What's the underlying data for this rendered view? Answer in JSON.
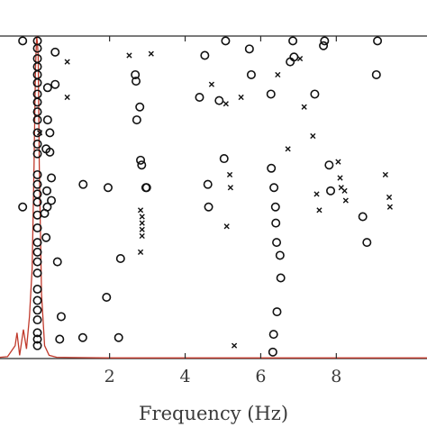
{
  "chart_data": {
    "type": "scatter",
    "title": "",
    "xlabel": "Frequency (Hz)",
    "ylabel": "",
    "xlim": [
      -0.9,
      10.4
    ],
    "ylim": [
      0,
      1
    ],
    "xticks": [
      2,
      4,
      6,
      8
    ],
    "tick_labels": [
      "2",
      "4",
      "6",
      "8"
    ],
    "grid": false,
    "legend": "none",
    "colors": {
      "markers": "#111111",
      "spectrum": "#c0392b",
      "axes": "#2b2b2b"
    },
    "series": [
      {
        "marker": "circle",
        "points": [
          [
            0.09,
            0.985
          ],
          [
            0.09,
            0.962
          ],
          [
            0.09,
            0.93
          ],
          [
            0.09,
            0.905
          ],
          [
            0.09,
            0.88
          ],
          [
            0.09,
            0.855
          ],
          [
            0.09,
            0.82
          ],
          [
            0.09,
            0.795
          ],
          [
            0.09,
            0.765
          ],
          [
            0.09,
            0.74
          ],
          [
            0.09,
            0.7
          ],
          [
            0.09,
            0.665
          ],
          [
            0.09,
            0.635
          ],
          [
            0.09,
            0.57
          ],
          [
            0.09,
            0.54
          ],
          [
            0.09,
            0.51
          ],
          [
            0.09,
            0.485
          ],
          [
            0.09,
            0.445
          ],
          [
            0.09,
            0.405
          ],
          [
            0.09,
            0.36
          ],
          [
            0.09,
            0.33
          ],
          [
            0.09,
            0.3
          ],
          [
            0.09,
            0.265
          ],
          [
            0.09,
            0.215
          ],
          [
            0.09,
            0.18
          ],
          [
            0.09,
            0.15
          ],
          [
            0.09,
            0.12
          ],
          [
            0.09,
            0.08
          ],
          [
            0.09,
            0.06
          ],
          [
            0.09,
            0.04
          ],
          [
            -0.3,
            0.985
          ],
          [
            -0.3,
            0.47
          ],
          [
            0.42,
            0.7
          ],
          [
            0.42,
            0.64
          ],
          [
            0.46,
            0.56
          ],
          [
            0.46,
            0.49
          ],
          [
            0.56,
            0.95
          ],
          [
            0.56,
            0.85
          ],
          [
            0.36,
            0.84
          ],
          [
            0.36,
            0.74
          ],
          [
            0.32,
            0.65
          ],
          [
            0.34,
            0.52
          ],
          [
            0.28,
            0.45
          ],
          [
            0.32,
            0.375
          ],
          [
            0.35,
            0.47
          ],
          [
            0.62,
            0.3
          ],
          [
            0.68,
            0.06
          ],
          [
            0.72,
            0.13
          ],
          [
            1.29,
            0.065
          ],
          [
            1.3,
            0.54
          ],
          [
            1.92,
            0.19
          ],
          [
            1.96,
            0.53
          ],
          [
            2.24,
            0.065
          ],
          [
            2.29,
            0.31
          ],
          [
            2.68,
            0.88
          ],
          [
            2.7,
            0.86
          ],
          [
            2.72,
            0.74
          ],
          [
            2.8,
            0.78
          ],
          [
            2.82,
            0.615
          ],
          [
            2.85,
            0.6
          ],
          [
            2.96,
            0.53
          ],
          [
            2.98,
            0.53
          ],
          [
            4.38,
            0.81
          ],
          [
            4.52,
            0.94
          ],
          [
            4.6,
            0.54
          ],
          [
            4.62,
            0.47
          ],
          [
            4.9,
            0.8
          ],
          [
            5.03,
            0.62
          ],
          [
            5.07,
            0.985
          ],
          [
            5.7,
            0.96
          ],
          [
            5.75,
            0.88
          ],
          [
            6.27,
            0.82
          ],
          [
            6.28,
            0.59
          ],
          [
            6.35,
            0.53
          ],
          [
            6.39,
            0.47
          ],
          [
            6.4,
            0.42
          ],
          [
            6.42,
            0.36
          ],
          [
            6.51,
            0.32
          ],
          [
            6.53,
            0.25
          ],
          [
            6.43,
            0.145
          ],
          [
            6.34,
            0.075
          ],
          [
            6.32,
            0.02
          ],
          [
            6.78,
            0.92
          ],
          [
            6.85,
            0.985
          ],
          [
            6.88,
            0.935
          ],
          [
            7.43,
            0.82
          ],
          [
            7.66,
            0.97
          ],
          [
            7.69,
            0.985
          ],
          [
            7.81,
            0.6
          ],
          [
            7.85,
            0.52
          ],
          [
            8.7,
            0.44
          ],
          [
            8.81,
            0.36
          ],
          [
            9.06,
            0.88
          ],
          [
            9.09,
            0.985
          ]
        ]
      },
      {
        "marker": "x",
        "points": [
          [
            0.15,
            0.7
          ],
          [
            0.88,
            0.92
          ],
          [
            0.88,
            0.81
          ],
          [
            2.52,
            0.94
          ],
          [
            3.1,
            0.945
          ],
          [
            2.82,
            0.46
          ],
          [
            2.86,
            0.44
          ],
          [
            2.86,
            0.42
          ],
          [
            2.86,
            0.4
          ],
          [
            2.86,
            0.38
          ],
          [
            2.82,
            0.33
          ],
          [
            4.7,
            0.85
          ],
          [
            5.08,
            0.79
          ],
          [
            5.18,
            0.57
          ],
          [
            5.2,
            0.53
          ],
          [
            5.1,
            0.41
          ],
          [
            5.3,
            0.04
          ],
          [
            5.48,
            0.81
          ],
          [
            6.45,
            0.88
          ],
          [
            6.72,
            0.65
          ],
          [
            7.04,
            0.93
          ],
          [
            7.15,
            0.78
          ],
          [
            7.38,
            0.69
          ],
          [
            7.48,
            0.51
          ],
          [
            7.55,
            0.46
          ],
          [
            8.05,
            0.61
          ],
          [
            8.1,
            0.56
          ],
          [
            8.13,
            0.53
          ],
          [
            8.22,
            0.52
          ],
          [
            8.25,
            0.49
          ],
          [
            9.3,
            0.57
          ],
          [
            9.4,
            0.5
          ],
          [
            9.42,
            0.47
          ]
        ]
      }
    ],
    "spectrum": {
      "x": [
        -0.9,
        -0.7,
        -0.5,
        -0.45,
        -0.38,
        -0.28,
        -0.2,
        -0.12,
        -0.05,
        0.0,
        0.04,
        0.07,
        0.09,
        0.11,
        0.14,
        0.2,
        0.28,
        0.4,
        0.6,
        1.0,
        2.0,
        4.0,
        6.0,
        8.0,
        10.4
      ],
      "y": [
        0.004,
        0.006,
        0.04,
        0.08,
        0.01,
        0.09,
        0.03,
        0.13,
        0.28,
        0.6,
        0.9,
        1.0,
        0.98,
        0.94,
        0.6,
        0.2,
        0.04,
        0.01,
        0.004,
        0.003,
        0.002,
        0.002,
        0.002,
        0.002,
        0.002
      ]
    }
  }
}
